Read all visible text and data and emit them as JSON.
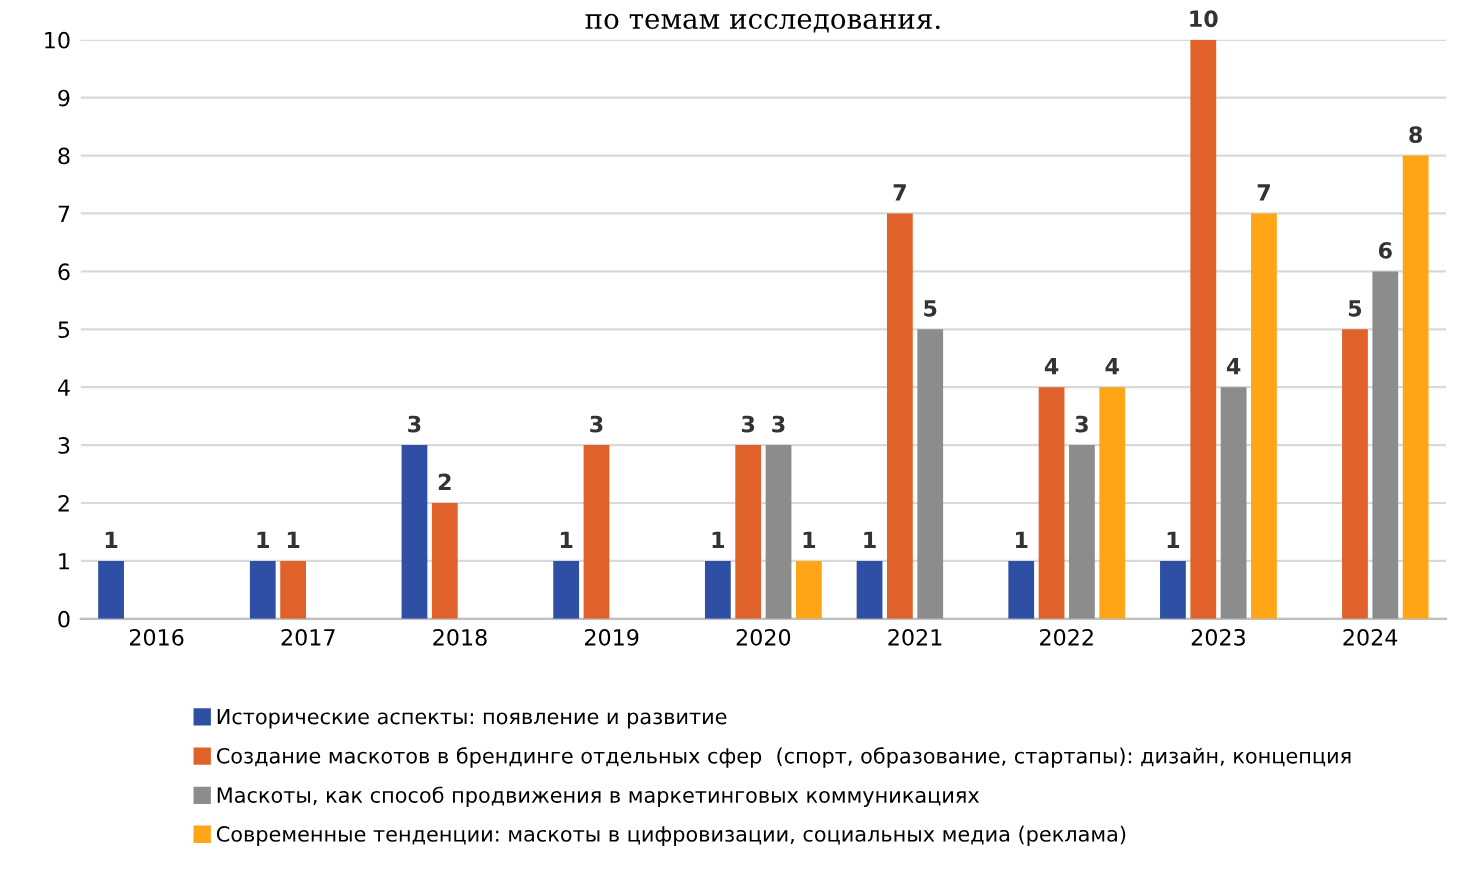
{
  "chart_data": {
    "type": "bar",
    "title": "по темам исследования.",
    "categories": [
      "2016",
      "2017",
      "2018",
      "2019",
      "2020",
      "2021",
      "2022",
      "2023",
      "2024"
    ],
    "series": [
      {
        "name": "Исторические аспекты: появление и развитие",
        "color": "#2e4fa3",
        "values": [
          1,
          1,
          3,
          1,
          1,
          1,
          1,
          1,
          null
        ]
      },
      {
        "name": "Создание маскотов в брендинге отдельных сфер  (спорт, образование, стартапы): дизайн, концепция",
        "color": "#e0622a",
        "values": [
          null,
          1,
          2,
          3,
          3,
          7,
          4,
          10,
          5
        ]
      },
      {
        "name": "Маскоты, как способ продвижения в маркетинговых коммуникациях",
        "color": "#8c8c8c",
        "values": [
          null,
          null,
          null,
          null,
          3,
          5,
          3,
          4,
          6
        ]
      },
      {
        "name": "Современные тенденции: маскоты в цифровизации, социальных медиа (реклама)",
        "color": "#ffa516",
        "values": [
          null,
          null,
          null,
          null,
          1,
          null,
          4,
          7,
          8
        ]
      }
    ],
    "ylim": [
      0,
      10
    ],
    "yticks": [
      0,
      1,
      2,
      3,
      4,
      5,
      6,
      7,
      8,
      9,
      10
    ],
    "grid": "y",
    "legend": "bottom",
    "data_labels": true
  }
}
